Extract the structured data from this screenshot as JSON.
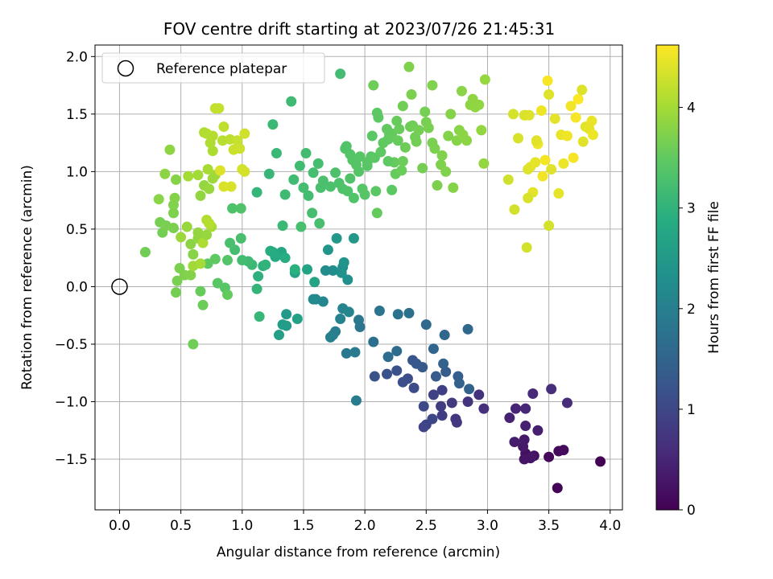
{
  "chart_data": {
    "type": "scatter",
    "title": "FOV centre drift starting at 2023/07/26 21:45:31",
    "xlabel": "Angular distance from reference (arcmin)",
    "ylabel": "Rotation from reference (arcmin)",
    "xlim": [
      -0.2,
      4.1
    ],
    "ylim": [
      -1.94,
      2.1
    ],
    "xticks": [
      0.0,
      0.5,
      1.0,
      1.5,
      2.0,
      2.5,
      3.0,
      3.5,
      4.0
    ],
    "xtick_labels": [
      "0.0",
      "0.5",
      "1.0",
      "1.5",
      "2.0",
      "2.5",
      "3.0",
      "3.5",
      "4.0"
    ],
    "yticks": [
      -1.5,
      -1.0,
      -0.5,
      0.0,
      0.5,
      1.0,
      1.5,
      2.0
    ],
    "ytick_labels": [
      "−1.5",
      "−1.0",
      "−0.5",
      "0.0",
      "0.5",
      "1.0",
      "1.5",
      "2.0"
    ],
    "grid": true,
    "colormap": "viridis",
    "legend": {
      "location": "upper-left",
      "entries": [
        {
          "label": "Reference platepar",
          "marker": "open-circle",
          "x": 0.0,
          "y": 0.0
        }
      ]
    },
    "colorbar": {
      "label": "Hours from first FF file",
      "range": [
        0,
        4.62
      ],
      "ticks": [
        0,
        1,
        2,
        3,
        4
      ],
      "tick_labels": [
        "0",
        "1",
        "2",
        "3",
        "4"
      ]
    },
    "series": [
      {
        "color_by": "hours",
        "points": [
          [
            3.92,
            -1.52,
            0.02
          ],
          [
            3.57,
            -1.75,
            0.05
          ],
          [
            3.5,
            -1.48,
            0.08
          ],
          [
            3.58,
            -1.43,
            0.11
          ],
          [
            3.62,
            -1.42,
            0.13
          ],
          [
            3.38,
            -1.47,
            0.16
          ],
          [
            3.31,
            -1.45,
            0.19
          ],
          [
            3.35,
            -1.49,
            0.22
          ],
          [
            3.3,
            -1.5,
            0.25
          ],
          [
            3.36,
            -1.48,
            0.28
          ],
          [
            3.29,
            -1.39,
            0.31
          ],
          [
            3.3,
            -1.33,
            0.34
          ],
          [
            3.22,
            -1.35,
            0.37
          ],
          [
            3.41,
            -1.25,
            0.4
          ],
          [
            3.31,
            -1.21,
            0.43
          ],
          [
            3.18,
            -1.14,
            0.46
          ],
          [
            3.23,
            -1.06,
            0.49
          ],
          [
            3.31,
            -1.06,
            0.52
          ],
          [
            3.37,
            -0.93,
            0.55
          ],
          [
            3.65,
            -1.01,
            0.58
          ],
          [
            3.52,
            -0.89,
            0.61
          ],
          [
            2.97,
            -1.06,
            0.64
          ],
          [
            2.93,
            -0.94,
            0.67
          ],
          [
            2.84,
            -1.0,
            0.7
          ],
          [
            2.74,
            -1.15,
            0.73
          ],
          [
            2.75,
            -1.18,
            0.76
          ],
          [
            2.71,
            -1.01,
            0.79
          ],
          [
            2.62,
            -1.04,
            0.82
          ],
          [
            2.63,
            -1.12,
            0.85
          ],
          [
            2.63,
            -0.9,
            0.88
          ],
          [
            2.56,
            -0.94,
            0.91
          ],
          [
            2.5,
            -1.2,
            0.94
          ],
          [
            2.48,
            -1.22,
            0.97
          ],
          [
            2.55,
            -1.15,
            1.0
          ],
          [
            2.48,
            -1.04,
            1.03
          ],
          [
            2.4,
            -0.88,
            1.06
          ],
          [
            2.35,
            -0.8,
            1.09
          ],
          [
            2.31,
            -0.83,
            1.12
          ],
          [
            2.26,
            -0.73,
            1.15
          ],
          [
            2.18,
            -0.76,
            1.18
          ],
          [
            2.08,
            -0.78,
            1.21
          ],
          [
            2.39,
            -0.64,
            1.24
          ],
          [
            2.42,
            -0.67,
            1.27
          ],
          [
            2.47,
            -0.7,
            1.3
          ],
          [
            2.58,
            -0.78,
            1.33
          ],
          [
            2.66,
            -0.74,
            1.36
          ],
          [
            2.76,
            -0.78,
            1.39
          ],
          [
            2.77,
            -0.84,
            1.42
          ],
          [
            2.85,
            -0.89,
            1.45
          ],
          [
            2.64,
            -0.67,
            1.48
          ],
          [
            2.56,
            -0.54,
            1.51
          ],
          [
            2.65,
            -0.42,
            1.54
          ],
          [
            2.84,
            -0.37,
            1.57
          ],
          [
            2.5,
            -0.33,
            1.6
          ],
          [
            2.26,
            -0.56,
            1.63
          ],
          [
            2.19,
            -0.61,
            1.66
          ],
          [
            2.07,
            -0.48,
            1.69
          ],
          [
            2.36,
            -0.23,
            1.72
          ],
          [
            2.27,
            -0.24,
            1.75
          ],
          [
            2.12,
            -0.21,
            1.78
          ],
          [
            1.96,
            -0.35,
            1.81
          ],
          [
            1.95,
            -0.29,
            1.84
          ],
          [
            1.85,
            -0.58,
            1.87
          ],
          [
            1.92,
            -0.57,
            1.9
          ],
          [
            1.93,
            -0.99,
            1.93
          ],
          [
            1.76,
            -0.39,
            1.96
          ],
          [
            1.74,
            -0.42,
            1.99
          ],
          [
            1.72,
            -0.44,
            2.02
          ],
          [
            1.8,
            -0.28,
            2.05
          ],
          [
            1.82,
            -0.19,
            2.08
          ],
          [
            1.87,
            -0.22,
            2.11
          ],
          [
            1.66,
            -0.13,
            2.14
          ],
          [
            1.6,
            -0.11,
            2.17
          ],
          [
            1.58,
            -0.11,
            2.2
          ],
          [
            1.68,
            0.14,
            2.23
          ],
          [
            1.74,
            0.14,
            2.26
          ],
          [
            1.82,
            0.17,
            2.29
          ],
          [
            1.86,
            0.06,
            2.32
          ],
          [
            1.81,
            0.12,
            2.35
          ],
          [
            1.83,
            0.21,
            2.38
          ],
          [
            1.7,
            0.32,
            2.41
          ],
          [
            1.77,
            0.42,
            2.44
          ],
          [
            1.91,
            0.42,
            2.47
          ],
          [
            1.36,
            -0.24,
            2.5
          ],
          [
            1.36,
            -0.34,
            2.53
          ],
          [
            1.33,
            -0.33,
            2.56
          ],
          [
            1.3,
            -0.42,
            2.59
          ],
          [
            1.45,
            -0.28,
            2.62
          ],
          [
            1.43,
            0.12,
            2.65
          ],
          [
            1.53,
            0.15,
            2.68
          ],
          [
            1.59,
            0.04,
            2.71
          ],
          [
            1.32,
            0.3,
            2.74
          ],
          [
            1.3,
            0.28,
            2.77
          ],
          [
            1.25,
            0.3,
            2.8
          ],
          [
            1.27,
            0.26,
            2.83
          ],
          [
            1.23,
            0.31,
            2.86
          ],
          [
            1.35,
            0.25,
            2.89
          ],
          [
            1.43,
            0.15,
            2.92
          ],
          [
            1.13,
            0.09,
            2.95
          ],
          [
            1.17,
            0.18,
            2.98
          ],
          [
            1.19,
            0.19,
            3.01
          ],
          [
            1.12,
            -0.02,
            3.04
          ],
          [
            1.14,
            -0.26,
            3.07
          ],
          [
            1.33,
            0.53,
            3.1
          ],
          [
            1.08,
            0.19,
            3.13
          ],
          [
            1.05,
            0.22,
            3.16
          ],
          [
            1.0,
            0.23,
            3.19
          ],
          [
            0.94,
            0.32,
            3.22
          ],
          [
            0.99,
            0.42,
            3.25
          ],
          [
            0.9,
            0.38,
            3.28
          ],
          [
            0.92,
            0.68,
            3.31
          ],
          [
            0.99,
            0.68,
            3.34
          ],
          [
            0.88,
            0.23,
            3.37
          ],
          [
            0.86,
            -0.01,
            3.4
          ],
          [
            0.8,
            0.03,
            3.43
          ],
          [
            0.72,
            0.2,
            3.46
          ],
          [
            0.78,
            0.24,
            3.49
          ],
          [
            0.88,
            -0.07,
            3.52
          ],
          [
            0.66,
            -0.04,
            3.55
          ],
          [
            0.68,
            -0.16,
            3.58
          ],
          [
            0.6,
            -0.5,
            3.61
          ],
          [
            0.46,
            -0.05,
            3.64
          ],
          [
            0.47,
            0.05,
            3.67
          ],
          [
            0.49,
            0.16,
            3.7
          ],
          [
            0.53,
            0.1,
            3.73
          ],
          [
            0.58,
            0.1,
            3.76
          ],
          [
            0.6,
            0.28,
            3.79
          ],
          [
            0.58,
            0.37,
            3.82
          ],
          [
            0.64,
            0.42,
            3.85
          ],
          [
            0.64,
            0.47,
            3.88
          ],
          [
            0.55,
            0.52,
            3.91
          ],
          [
            0.5,
            0.43,
            3.94
          ],
          [
            0.6,
            0.18,
            3.97
          ],
          [
            0.66,
            0.2,
            4.0
          ],
          [
            0.75,
            0.52,
            4.03
          ],
          [
            0.68,
            0.38,
            4.06
          ],
          [
            0.71,
            0.58,
            4.09
          ],
          [
            0.73,
            0.55,
            4.12
          ]
        ]
      }
    ],
    "points_extra": [
      [
        0.21,
        0.3,
        3.62
      ],
      [
        0.35,
        0.47,
        3.64
      ],
      [
        0.33,
        0.56,
        3.66
      ],
      [
        0.38,
        0.53,
        3.68
      ],
      [
        0.44,
        0.51,
        3.7
      ],
      [
        0.44,
        0.64,
        3.72
      ],
      [
        0.44,
        0.71,
        3.74
      ],
      [
        0.45,
        0.77,
        3.76
      ],
      [
        0.46,
        0.93,
        3.78
      ],
      [
        0.32,
        0.76,
        3.8
      ],
      [
        0.37,
        0.98,
        3.82
      ],
      [
        0.41,
        1.19,
        3.84
      ],
      [
        0.66,
        0.79,
        3.86
      ],
      [
        0.69,
        0.88,
        3.88
      ],
      [
        0.71,
        0.45,
        3.9
      ],
      [
        0.73,
        0.85,
        3.92
      ],
      [
        0.76,
        0.94,
        3.94
      ],
      [
        0.78,
        0.97,
        3.96
      ],
      [
        0.64,
        0.97,
        3.98
      ],
      [
        0.56,
        0.96,
        4.0
      ],
      [
        0.72,
        1.02,
        4.02
      ],
      [
        0.76,
        1.18,
        4.04
      ],
      [
        0.74,
        1.25,
        4.06
      ],
      [
        0.69,
        1.34,
        4.08
      ],
      [
        0.71,
        1.33,
        4.1
      ],
      [
        0.76,
        1.31,
        4.12
      ],
      [
        0.84,
        1.27,
        4.14
      ],
      [
        0.9,
        1.28,
        4.16
      ],
      [
        0.85,
        1.39,
        4.18
      ],
      [
        0.78,
        1.55,
        4.2
      ],
      [
        0.81,
        1.55,
        4.22
      ],
      [
        0.96,
        1.27,
        4.24
      ],
      [
        0.93,
        1.19,
        4.26
      ],
      [
        0.98,
        1.2,
        4.28
      ],
      [
        1.02,
        1.33,
        4.3
      ],
      [
        1.0,
        1.02,
        4.32
      ],
      [
        1.02,
        1.0,
        4.34
      ],
      [
        0.91,
        0.87,
        4.36
      ],
      [
        0.85,
        0.87,
        4.38
      ],
      [
        0.82,
        1.01,
        4.4
      ]
    ]
  }
}
